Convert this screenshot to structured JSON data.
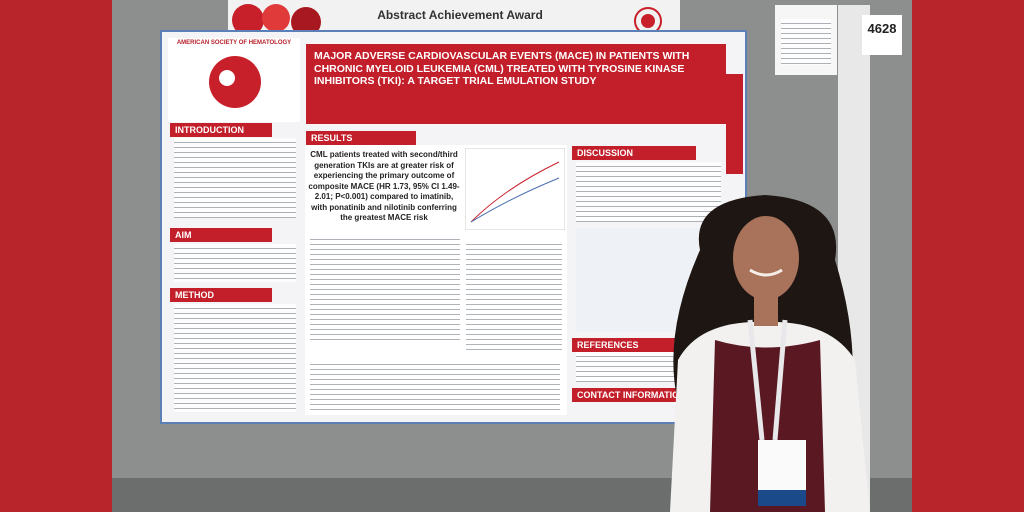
{
  "award_banner": {
    "title": "Abstract Achievement Award"
  },
  "board_number": "4628",
  "poster": {
    "society": "AMERICAN SOCIETY OF HEMATOLOGY",
    "title": "MAJOR ADVERSE CARDIOVASCULAR EVENTS (MACE) IN PATIENTS WITH CHRONIC MYELOID LEUKEMIA (CML) TREATED WITH TYROSINE KINASE INHIBITORS (TKI): A TARGET TRIAL EMULATION STUDY",
    "sections": [
      "INTRODUCTION",
      "AIM",
      "METHOD",
      "RESULTS",
      "DISCUSSION",
      "REFERENCES",
      "CONTACT INFORMATION"
    ],
    "results_highlight": "CML patients treated with second/third generation TKIs are at greater risk of experiencing the primary outcome of composite MACE (HR 1.73, 95% CI 1.49-2.01; P<0.001) compared to imatinib, with ponatinib and nilotinib conferring the greatest MACE risk"
  }
}
